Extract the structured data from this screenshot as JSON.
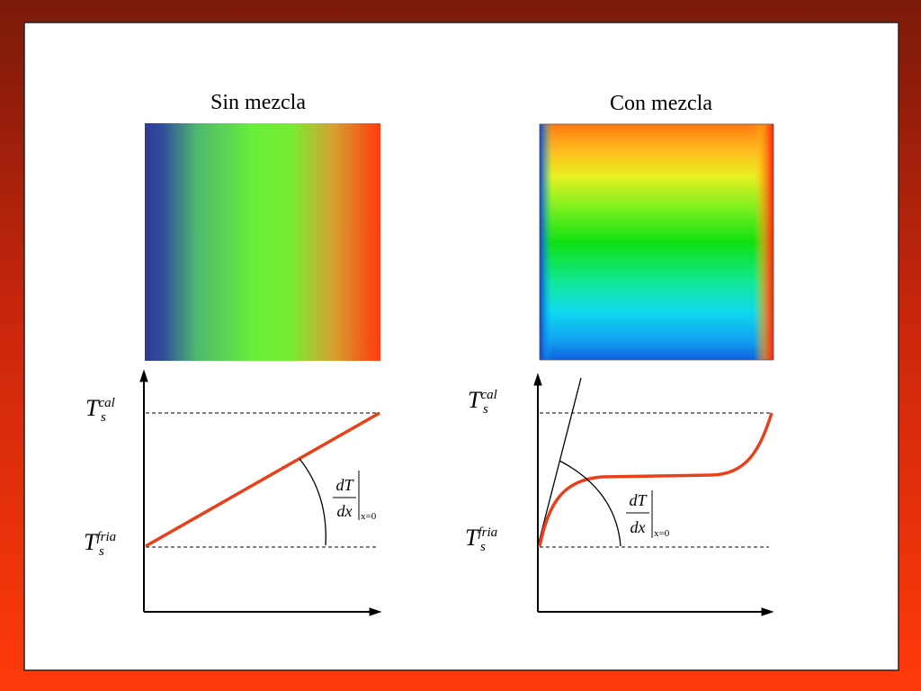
{
  "panels": [
    {
      "title": "Sin mezcla",
      "hot": {
        "symbol": "T",
        "sub": "s",
        "sup": "cal"
      },
      "cold": {
        "symbol": "T",
        "sub": "s",
        "sup": "fria"
      },
      "slope": {
        "num": "dT",
        "den": "dx",
        "at": "x=0"
      }
    },
    {
      "title": "Con mezcla",
      "hot": {
        "symbol": "T",
        "sub": "s",
        "sup": "cal"
      },
      "cold": {
        "symbol": "T",
        "sub": "s",
        "sup": "fria"
      },
      "slope": {
        "num": "dT",
        "den": "dx",
        "at": "x=0"
      }
    }
  ]
}
